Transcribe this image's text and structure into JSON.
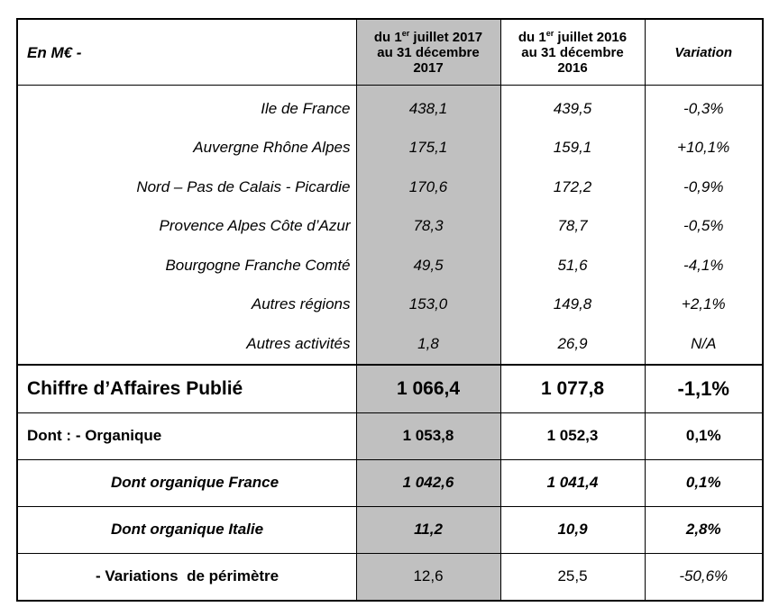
{
  "header": {
    "unit_label": "En M€ -",
    "col2_line1_pre": "du 1",
    "col2_line1_sup": "er",
    "col2_line1_post": " juillet 2017",
    "col2_line2": "au 31 décembre",
    "col2_line3": "2017",
    "col3_line1_pre": "du 1",
    "col3_line1_sup": "er",
    "col3_line1_post": " juillet 2016",
    "col3_line2": "au 31 décembre",
    "col3_line3": "2016",
    "variation": "Variation"
  },
  "regions": [
    {
      "label": "Ile de France",
      "y2017": "438,1",
      "y2016": "439,5",
      "variation": "-0,3%"
    },
    {
      "label": "Auvergne Rhône Alpes",
      "y2017": "175,1",
      "y2016": "159,1",
      "variation": "+10,1%"
    },
    {
      "label": "Nord – Pas de Calais - Picardie",
      "y2017": "170,6",
      "y2016": "172,2",
      "variation": "-0,9%"
    },
    {
      "label": "Provence Alpes Côte d’Azur",
      "y2017": "78,3",
      "y2016": "78,7",
      "variation": "-0,5%"
    },
    {
      "label": "Bourgogne Franche Comté",
      "y2017": "49,5",
      "y2016": "51,6",
      "variation": "-4,1%"
    },
    {
      "label": "Autres régions",
      "y2017": "153,0",
      "y2016": "149,8",
      "variation": "+2,1%"
    },
    {
      "label": "Autres activités",
      "y2017": "1,8",
      "y2016": "26,9",
      "variation": "N/A"
    }
  ],
  "total": {
    "label": "Chiffre d’Affaires Publié",
    "y2017": "1 066,4",
    "y2016": "1 077,8",
    "variation": "-1,1%"
  },
  "organic": {
    "label": "Dont : - Organique",
    "y2017": "1 053,8",
    "y2016": "1 052,3",
    "variation": "0,1%"
  },
  "organic_france": {
    "label": "Dont organique France",
    "y2017": "1 042,6",
    "y2016": "1 041,4",
    "variation": "0,1%"
  },
  "organic_italy": {
    "label": "Dont organique Italie",
    "y2017": "11,2",
    "y2016": "10,9",
    "variation": "2,8%"
  },
  "perimeter": {
    "label": "- Variations  de périmètre",
    "y2017": "12,6",
    "y2016": "25,5",
    "variation": "-50,6%"
  }
}
